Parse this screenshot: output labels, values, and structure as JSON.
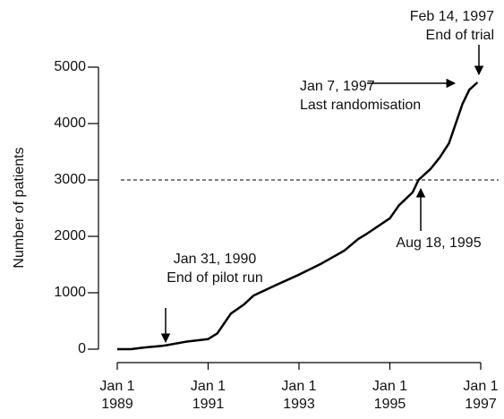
{
  "chart_data": {
    "type": "line",
    "ylabel": "Number of patients",
    "x": [
      1989,
      1989.3,
      1989.6,
      1990,
      1990.08,
      1990.5,
      1991,
      1991.2,
      1991.5,
      1991.8,
      1992,
      1992.5,
      1993,
      1993.5,
      1994,
      1994.3,
      1994.5,
      1995,
      1995.2,
      1995.5,
      1995.63,
      1995.9,
      1996.1,
      1996.3,
      1996.45,
      1996.6,
      1996.75,
      1996.93
    ],
    "values": [
      0,
      0,
      30,
      60,
      70,
      130,
      180,
      280,
      630,
      800,
      950,
      1140,
      1320,
      1520,
      1750,
      1950,
      2050,
      2320,
      2550,
      2780,
      3000,
      3200,
      3400,
      3650,
      4000,
      4350,
      4600,
      4730
    ],
    "color": "#000000",
    "xlim": [
      1989,
      1997
    ],
    "xticks": [
      {
        "value": 1989,
        "label": "Jan 1 1989"
      },
      {
        "value": 1991,
        "label": "Jan 1 1991"
      },
      {
        "value": 1993,
        "label": "Jan 1 1993"
      },
      {
        "value": 1995,
        "label": "Jan 1 1995"
      },
      {
        "value": 1997,
        "label": "Jan 1 1997"
      }
    ],
    "ylim": [
      0,
      5000
    ],
    "yticks": [
      0,
      1000,
      2000,
      3000,
      4000,
      5000
    ],
    "reference_line": 3000,
    "grid": false,
    "annotations": [
      {
        "lines": [
          "Jan 31, 1990",
          "End of pilot run"
        ]
      },
      {
        "lines": [
          "Aug 18, 1995"
        ]
      },
      {
        "lines": [
          "Jan 7, 1997",
          "Last randomisation"
        ]
      },
      {
        "lines": [
          "Feb 14, 1997",
          "End of trial"
        ]
      }
    ]
  }
}
